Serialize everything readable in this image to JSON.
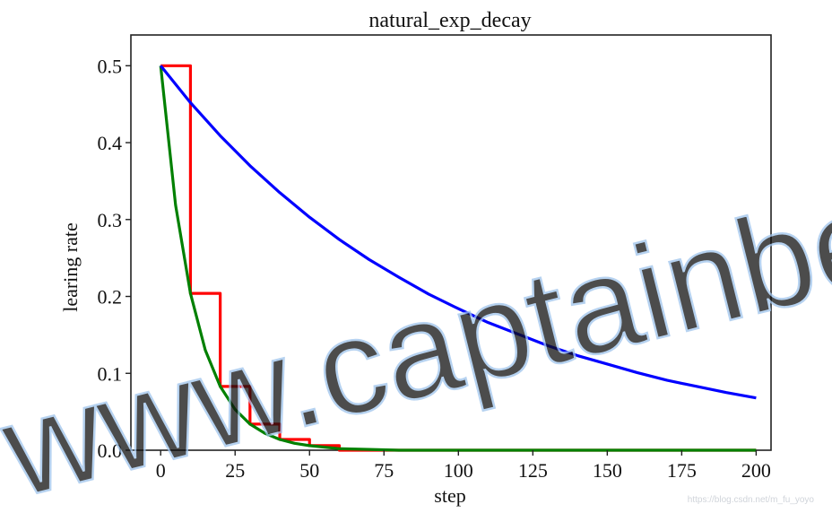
{
  "chart_data": {
    "type": "line",
    "title": "natural_exp_decay",
    "xlabel": "step",
    "ylabel": "learing rate",
    "xlim": [
      -10,
      205
    ],
    "ylim": [
      0,
      0.54
    ],
    "xticks": [
      0,
      25,
      50,
      75,
      100,
      125,
      150,
      175,
      200
    ],
    "xtick_labels": [
      "0",
      "25",
      "50",
      "75",
      "100",
      "125",
      "150",
      "175",
      "200"
    ],
    "yticks": [
      0.0,
      0.1,
      0.2,
      0.3,
      0.4,
      0.5
    ],
    "ytick_labels": [
      "0.0",
      "0.1",
      "0.2",
      "0.3",
      "0.4",
      "0.5"
    ],
    "grid": false,
    "legend": "none",
    "series": [
      {
        "color": "#ff0000",
        "style": "step",
        "x": [
          0,
          10,
          10,
          20,
          20,
          30,
          30,
          40,
          40,
          50,
          50,
          60,
          60,
          200
        ],
        "y": [
          0.5,
          0.5,
          0.204,
          0.204,
          0.083,
          0.083,
          0.034,
          0.034,
          0.014,
          0.014,
          0.006,
          0.006,
          0.0,
          0.0
        ]
      },
      {
        "color": "#008000",
        "style": "line",
        "x": [
          0,
          5,
          10,
          15,
          20,
          25,
          30,
          35,
          40,
          45,
          50,
          60,
          70,
          80,
          100,
          125,
          150,
          175,
          200
        ],
        "y": [
          0.5,
          0.319,
          0.204,
          0.13,
          0.083,
          0.053,
          0.034,
          0.022,
          0.014,
          0.009,
          0.006,
          0.002,
          0.001,
          0.0,
          0.0,
          0.0,
          0.0,
          0.0,
          0.0
        ]
      },
      {
        "color": "#0000ff",
        "style": "line",
        "x": [
          0,
          10,
          20,
          30,
          40,
          50,
          60,
          70,
          80,
          90,
          100,
          110,
          120,
          130,
          140,
          150,
          160,
          170,
          180,
          190,
          200
        ],
        "y": [
          0.5,
          0.452,
          0.409,
          0.37,
          0.335,
          0.303,
          0.274,
          0.248,
          0.225,
          0.203,
          0.184,
          0.166,
          0.151,
          0.136,
          0.123,
          0.112,
          0.101,
          0.091,
          0.083,
          0.075,
          0.068
        ]
      }
    ]
  },
  "watermark": {
    "text": "www.captainbed.ne",
    "credit": "https://blog.csdn.net/m_fu_yoyo"
  }
}
